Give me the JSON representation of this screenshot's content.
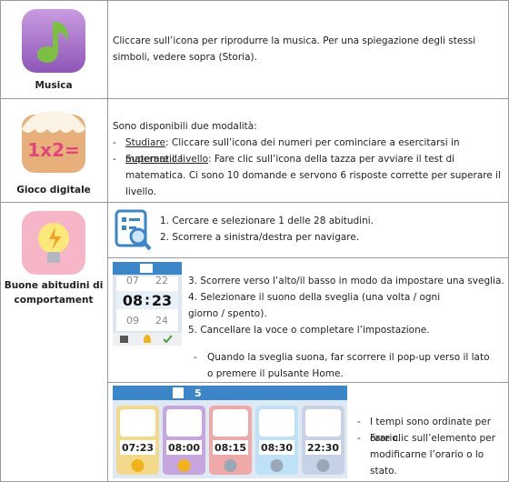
{
  "rows": [
    {
      "label": "Musica",
      "text": "Cliccare sull’icona per riprodurre la musica. Per una spiegazione degli stessi simboli, vedere sopra (Storia)."
    },
    {
      "label": "Gioco digitale",
      "icon_text": "1x2=",
      "intro": "Sono disponibili due modalità:",
      "items": [
        {
          "term": "Studiare",
          "text": ": Cliccare sull’icona dei numeri per cominciare a esercitarsi in matematica."
        },
        {
          "term": "Superare il livello",
          "text": ": Fare clic sull’icona della tazza per avviare il test di matematica. Ci sono 10 domande e servono 6 risposte corrette per superare il livello."
        }
      ]
    },
    {
      "label": "Buone abitudini di comportament",
      "search_steps": [
        "1. Cercare e selezionare 1 delle 28 abitudini.",
        "2. Scorrere a sinistra/destra per navigare."
      ],
      "alarm": {
        "hour_above": "07",
        "hour": "08",
        "separator": ":",
        "minute": "23",
        "minute_above": "22",
        "hour_below": "09",
        "minute_below": "24"
      },
      "alarm_steps": [
        "3. Scorrere verso l’alto/il basso in modo da impostare una sveglia.",
        "4. Selezionare il suono della sveglia (una volta / ogni giorno / spento).",
        "5. Cancellare la voce o completare l’impostazione."
      ],
      "alarm_note": "Quando la sveglia suona, far scorrere il pop-up verso il lato o premere il pulsante Home.",
      "schedule": {
        "count": "5",
        "times": [
          "07:23",
          "08:00",
          "08:15",
          "08:30",
          "22:30"
        ]
      },
      "schedule_notes": [
        "I tempi sono ordinate per orario.",
        "Fare clic sull’elemento per modificarne l’orario o lo stato."
      ]
    }
  ]
}
